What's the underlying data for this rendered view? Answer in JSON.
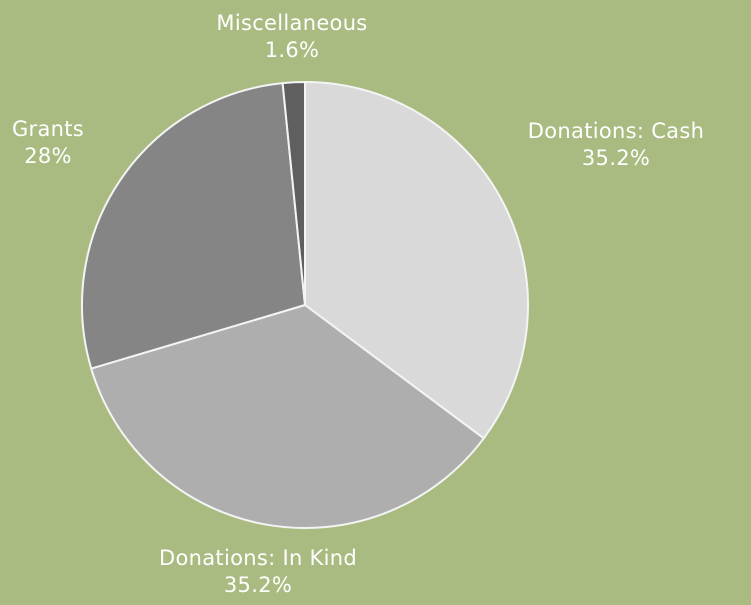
{
  "chart_data": {
    "type": "pie",
    "title": "",
    "start_angle_deg": -90,
    "direction": "clockwise",
    "slices": [
      {
        "label": "Donations: Cash",
        "value": 35.2,
        "value_label": "35.2%",
        "color": "#d9d9d9"
      },
      {
        "label": "Donations: In Kind",
        "value": 35.2,
        "value_label": "35.2%",
        "color": "#aeaeae"
      },
      {
        "label": "Grants",
        "value": 28,
        "value_label": "28%",
        "color": "#858585"
      },
      {
        "label": "Miscellaneous",
        "value": 1.6,
        "value_label": "1.6%",
        "color": "#5f5f5f"
      }
    ]
  },
  "colors": {
    "background": "#a9bb80",
    "label_text": "#ffffff"
  }
}
